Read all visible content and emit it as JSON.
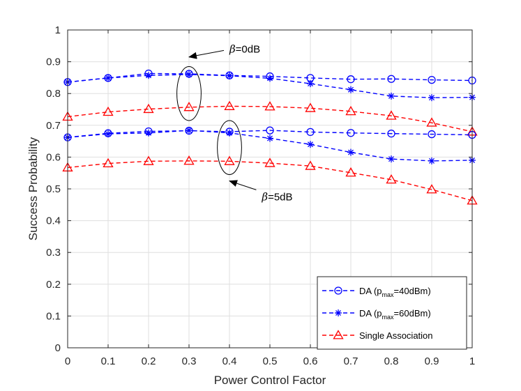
{
  "colors": {
    "blue": "#0000ff",
    "red": "#ff0000",
    "axis": "#262626",
    "grid": "#dfdfdf"
  },
  "chart_data": {
    "type": "line",
    "xlabel": "Power Control Factor",
    "ylabel": "Success Probability",
    "xlim": [
      0,
      1
    ],
    "ylim": [
      0,
      1
    ],
    "xticks": [
      "0",
      "0.1",
      "0.2",
      "0.3",
      "0.4",
      "0.5",
      "0.6",
      "0.7",
      "0.8",
      "0.9",
      "1"
    ],
    "yticks": [
      "0",
      "0.1",
      "0.2",
      "0.3",
      "0.4",
      "0.5",
      "0.6",
      "0.7",
      "0.8",
      "0.9",
      "1"
    ],
    "grid": true,
    "legend_position": "bottom-right",
    "x": [
      0,
      0.1,
      0.2,
      0.3,
      0.4,
      0.5,
      0.6,
      0.7,
      0.8,
      0.9,
      1.0
    ],
    "series": [
      {
        "legend": "da40",
        "color": "blue",
        "marker": "circle",
        "group": "beta0",
        "values": [
          0.836,
          0.849,
          0.863,
          0.862,
          0.857,
          0.854,
          0.849,
          0.845,
          0.846,
          0.843,
          0.841
        ]
      },
      {
        "legend": "da60",
        "color": "blue",
        "marker": "star",
        "group": "beta0",
        "values": [
          0.836,
          0.849,
          0.857,
          0.86,
          0.856,
          0.848,
          0.831,
          0.812,
          0.792,
          0.787,
          0.788
        ]
      },
      {
        "legend": "single",
        "color": "red",
        "marker": "triangle",
        "group": "beta0",
        "values": [
          0.727,
          0.742,
          0.751,
          0.757,
          0.76,
          0.759,
          0.754,
          0.744,
          0.73,
          0.708,
          0.68
        ]
      },
      {
        "legend": "da40",
        "color": "blue",
        "marker": "circle",
        "group": "beta5",
        "values": [
          0.662,
          0.675,
          0.681,
          0.683,
          0.68,
          0.684,
          0.679,
          0.676,
          0.674,
          0.672,
          0.67
        ]
      },
      {
        "legend": "da60",
        "color": "blue",
        "marker": "star",
        "group": "beta5",
        "values": [
          0.662,
          0.673,
          0.676,
          0.684,
          0.676,
          0.659,
          0.64,
          0.615,
          0.594,
          0.588,
          0.59
        ]
      },
      {
        "legend": "single",
        "color": "red",
        "marker": "triangle",
        "group": "beta5",
        "values": [
          0.567,
          0.58,
          0.587,
          0.588,
          0.587,
          0.581,
          0.572,
          0.551,
          0.529,
          0.498,
          0.463
        ]
      }
    ],
    "legend": [
      {
        "key": "da40",
        "prefix": "DA (p",
        "sub": "max",
        "suffix": "=40dBm)",
        "color": "blue",
        "marker": "circle"
      },
      {
        "key": "da60",
        "prefix": "DA (p",
        "sub": "max",
        "suffix": "=60dBm)",
        "color": "blue",
        "marker": "star"
      },
      {
        "key": "single",
        "prefix": "Single Association",
        "sub": "",
        "suffix": "",
        "color": "red",
        "marker": "triangle"
      }
    ],
    "annotations": [
      {
        "symbol": "β",
        "text": "=0dB",
        "ellipse_center": [
          0.3,
          0.8
        ],
        "ellipse_rx": 0.03,
        "ellipse_ry": 0.085,
        "arrow_tip": [
          0.3,
          0.915
        ],
        "label_at": [
          0.4,
          0.94
        ]
      },
      {
        "symbol": "β",
        "text": "=5dB",
        "ellipse_center": [
          0.4,
          0.63
        ],
        "ellipse_rx": 0.03,
        "ellipse_ry": 0.085,
        "arrow_tip": [
          0.4,
          0.525
        ],
        "label_at": [
          0.48,
          0.475
        ]
      }
    ]
  }
}
